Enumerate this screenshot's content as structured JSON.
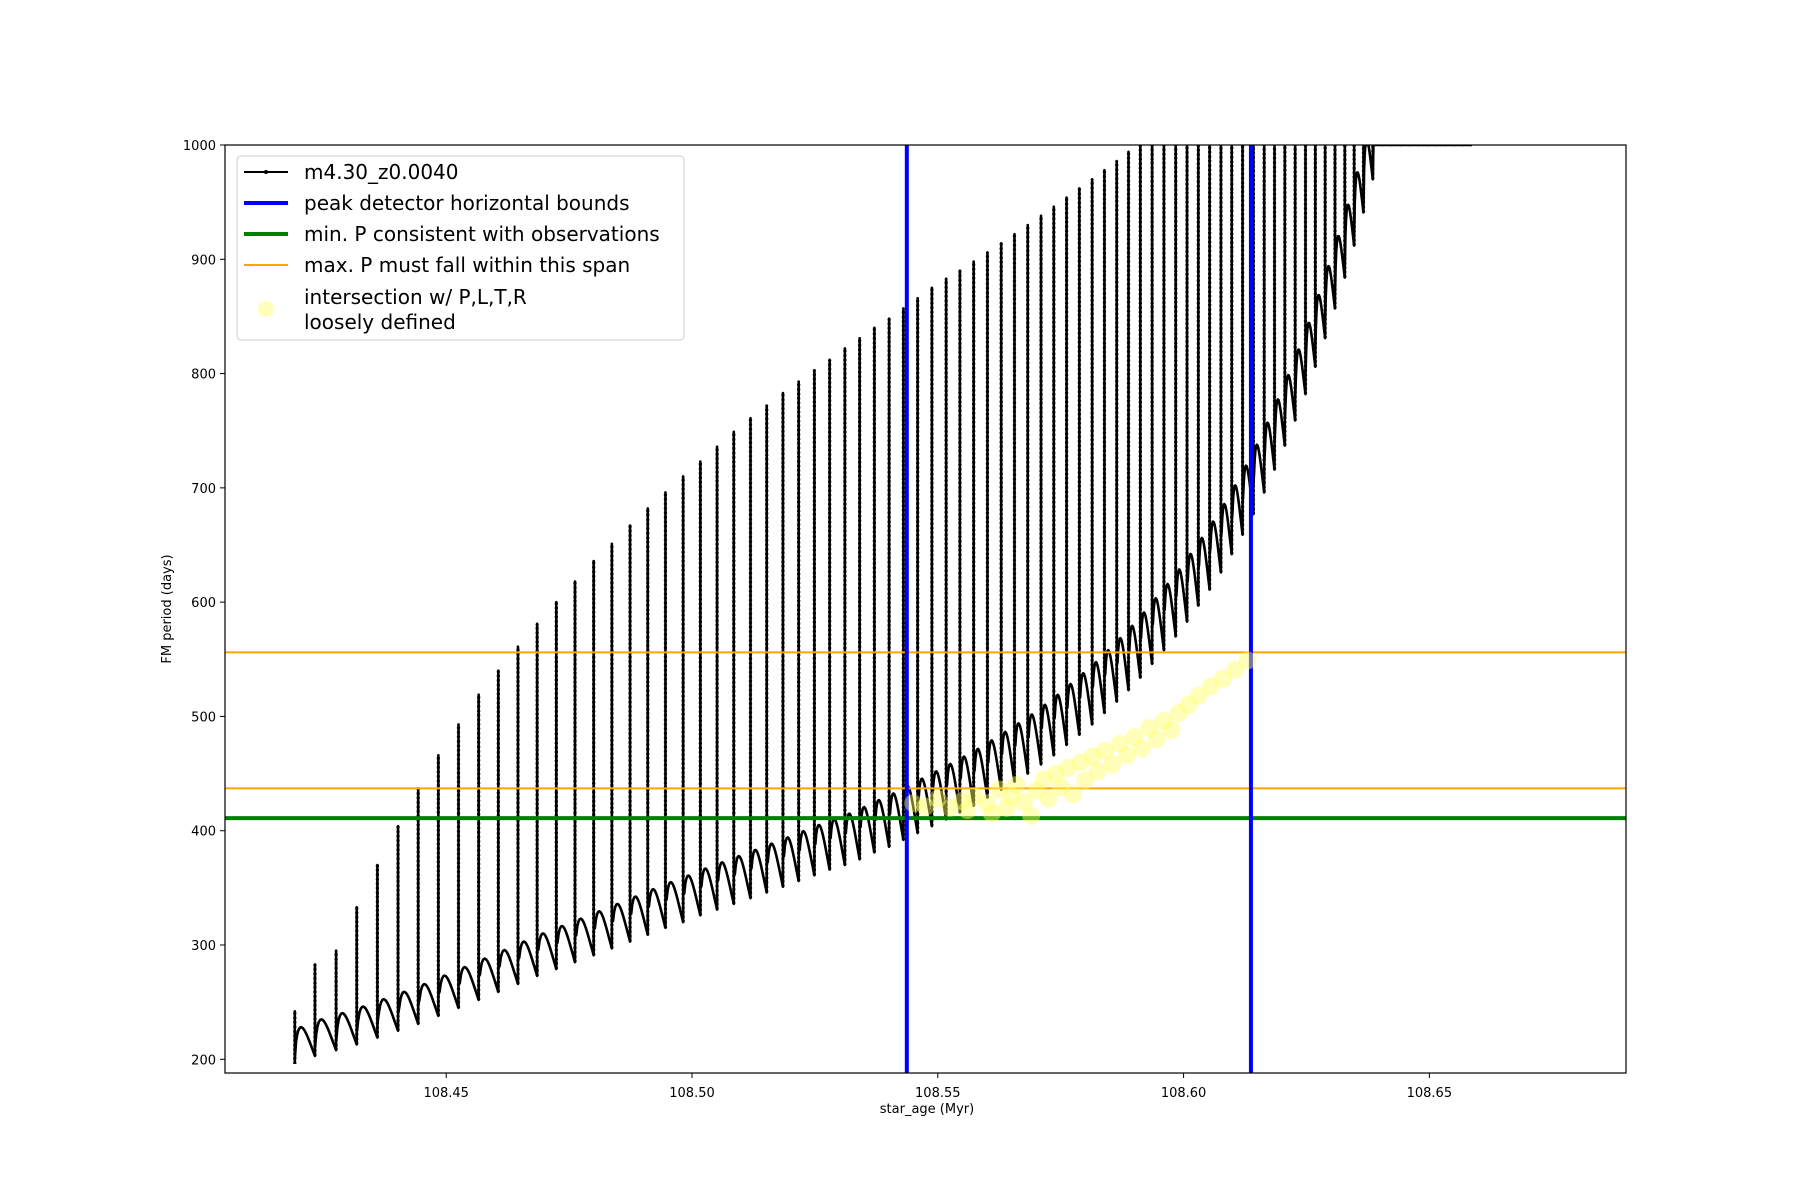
{
  "chart_data": {
    "type": "line",
    "xlabel": "star_age (Myr)",
    "ylabel": "FM period (days)",
    "xlim": [
      108.405,
      108.69
    ],
    "ylim": [
      188,
      1000
    ],
    "xticks": [
      108.45,
      108.5,
      108.55,
      108.6,
      108.65
    ],
    "xtick_labels": [
      "108.45",
      "108.50",
      "108.55",
      "108.60",
      "108.65"
    ],
    "yticks": [
      200,
      300,
      400,
      500,
      600,
      700,
      800,
      900,
      1000
    ],
    "ytick_labels": [
      "200",
      "300",
      "400",
      "500",
      "600",
      "700",
      "800",
      "900",
      "1000"
    ],
    "grid": false,
    "legend_position": "top-left",
    "colors": {
      "model": "#000000",
      "bounds": "#0000ff",
      "min_p": "#008000",
      "max_p_span": "#ffa500",
      "intersection": "#ffff66"
    },
    "legend": [
      {
        "key": "model",
        "label": "m4.30_z0.0040",
        "style": "line-marker"
      },
      {
        "key": "bounds",
        "label": "peak detector horizontal bounds",
        "style": "thick-line"
      },
      {
        "key": "min_p",
        "label": "min. P consistent with observations",
        "style": "thick-line"
      },
      {
        "key": "max_p_span",
        "label": "max. P must fall within this span",
        "style": "thin-line"
      },
      {
        "key": "intersection",
        "label": "intersection w/ P,L,T,R\nloosely defined",
        "style": "dot"
      }
    ],
    "series": [
      {
        "name": "m4.30_z0.0040",
        "pulse_ages": [
          108.4192,
          108.4233,
          108.4276,
          108.4318,
          108.436,
          108.4402,
          108.4443,
          108.4484,
          108.4525,
          108.4566,
          108.4606,
          108.4646,
          108.4685,
          108.4724,
          108.4762,
          108.48,
          108.4837,
          108.4874,
          108.491,
          108.4946,
          108.4982,
          108.5017,
          108.5051,
          108.5085,
          108.5119,
          108.5152,
          108.5185,
          108.5217,
          108.5249,
          108.528,
          108.5311,
          108.5341,
          108.5371,
          108.5401,
          108.543,
          108.5459,
          108.5488,
          108.5517,
          108.5545,
          108.5573,
          108.5601,
          108.5629,
          108.5656,
          108.5683,
          108.571,
          108.5736,
          108.5762,
          108.5788,
          108.5814,
          108.5839,
          108.5864,
          108.5888,
          108.5912,
          108.5936,
          108.596,
          108.5984,
          108.6007,
          108.603,
          108.6053,
          108.6076,
          108.6098,
          108.612,
          108.6142,
          108.6164,
          108.6185,
          108.6206,
          108.6227,
          108.6248,
          108.6268,
          108.6288,
          108.6308,
          108.6328,
          108.6347,
          108.6366,
          108.6385,
          108.6404,
          108.6422,
          108.6441,
          108.6459,
          108.6478,
          108.6496,
          108.6514,
          108.6532,
          108.655,
          108.6568,
          108.6586
        ],
        "pulse_lows": [
          196,
          203,
          208,
          213,
          219,
          225,
          231,
          238,
          245,
          252,
          259,
          266,
          273,
          279,
          285,
          291,
          297,
          303,
          309,
          315,
          320,
          326,
          331,
          336,
          341,
          346,
          351,
          356,
          361,
          366,
          370,
          375,
          381,
          386,
          392,
          398,
          404,
          410,
          416,
          422,
          429,
          436,
          443,
          450,
          458,
          466,
          475,
          484,
          493,
          503,
          513,
          523,
          534,
          546,
          558,
          570,
          583,
          597,
          611,
          626,
          642,
          659,
          677,
          696,
          716,
          737,
          759,
          782,
          806,
          831,
          857,
          884,
          912,
          941,
          970,
          1000,
          1000,
          1000,
          1000,
          1000,
          1000,
          1000,
          1000,
          1000,
          1000,
          1000
        ],
        "pulse_peaks": [
          242,
          283,
          295,
          333,
          370,
          404,
          437,
          466,
          493,
          519,
          540,
          561,
          581,
          600,
          618,
          636,
          651,
          667,
          682,
          696,
          710,
          723,
          736,
          749,
          761,
          772,
          783,
          793,
          803,
          812,
          822,
          831,
          840,
          848,
          857,
          866,
          875,
          883,
          890,
          898,
          906,
          914,
          922,
          930,
          938,
          946,
          954,
          962,
          970,
          978,
          986,
          994,
          1000,
          1000,
          1000,
          1000,
          1000,
          1000,
          1000,
          1000,
          1000,
          1000,
          1000,
          1000,
          1000,
          1000,
          1000,
          1000,
          1000,
          1000,
          1000,
          1000,
          1000,
          1000,
          1000,
          1000,
          1000,
          1000,
          1000,
          1000,
          1000,
          1000,
          1000,
          1000,
          1000,
          1000
        ],
        "envelope_end_age": 108.6586
      }
    ],
    "vertical_lines": [
      108.5437,
      108.6137
    ],
    "min_p_line": 411,
    "max_p_span": [
      437,
      556
    ],
    "intersection_points": [
      [
        108.545,
        424
      ],
      [
        108.5475,
        421
      ],
      [
        108.55,
        428
      ],
      [
        108.5525,
        420
      ],
      [
        108.555,
        426
      ],
      [
        108.556,
        418
      ],
      [
        108.5575,
        430
      ],
      [
        108.56,
        424
      ],
      [
        108.561,
        415
      ],
      [
        108.5625,
        436
      ],
      [
        108.564,
        420
      ],
      [
        108.565,
        430
      ],
      [
        108.566,
        440
      ],
      [
        108.5675,
        425
      ],
      [
        108.569,
        413
      ],
      [
        108.57,
        435
      ],
      [
        108.5715,
        445
      ],
      [
        108.5725,
        428
      ],
      [
        108.574,
        450
      ],
      [
        108.575,
        438
      ],
      [
        108.5765,
        455
      ],
      [
        108.5775,
        432
      ],
      [
        108.579,
        460
      ],
      [
        108.58,
        444
      ],
      [
        108.5815,
        465
      ],
      [
        108.5825,
        452
      ],
      [
        108.584,
        470
      ],
      [
        108.5855,
        458
      ],
      [
        108.587,
        476
      ],
      [
        108.5885,
        466
      ],
      [
        108.59,
        482
      ],
      [
        108.5915,
        472
      ],
      [
        108.593,
        490
      ],
      [
        108.5945,
        480
      ],
      [
        108.596,
        496
      ],
      [
        108.5975,
        488
      ],
      [
        108.599,
        503
      ],
      [
        108.601,
        510
      ],
      [
        108.603,
        518
      ],
      [
        108.6055,
        526
      ],
      [
        108.608,
        533
      ],
      [
        108.6105,
        541
      ],
      [
        108.613,
        549
      ]
    ]
  }
}
